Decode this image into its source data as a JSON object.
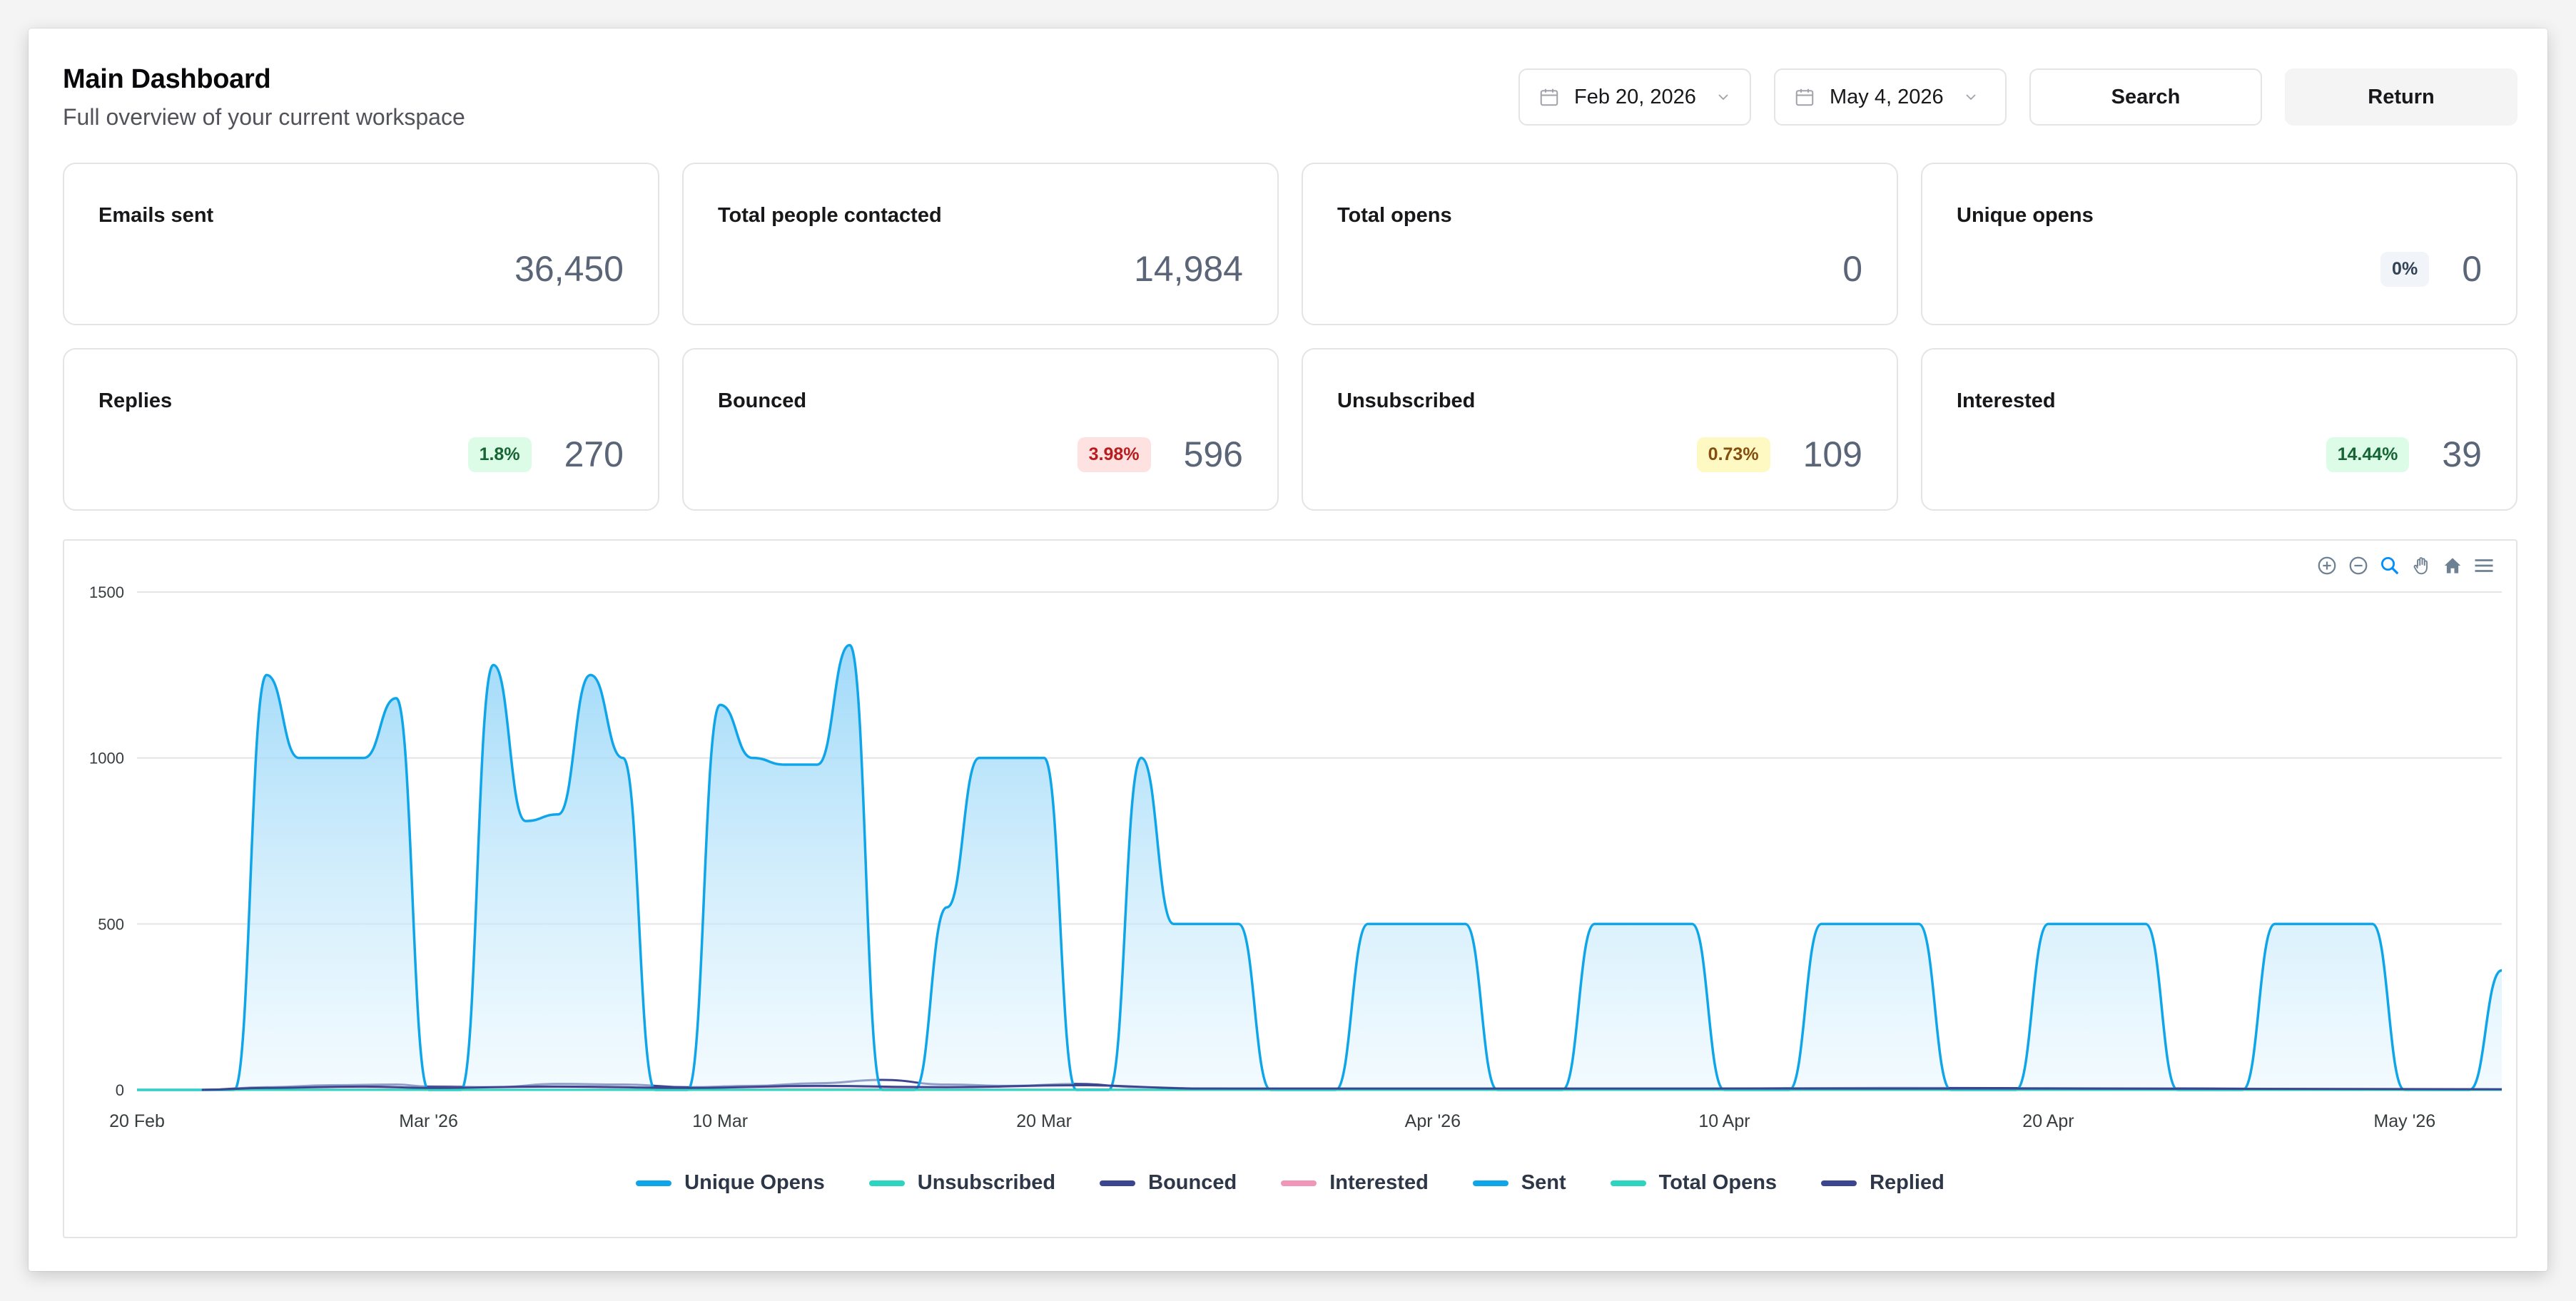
{
  "header": {
    "title": "Main Dashboard",
    "subtitle": "Full overview of your current workspace"
  },
  "controls": {
    "start_date": "Feb 20, 2026",
    "end_date": "May 4, 2026",
    "search_label": "Search",
    "return_label": "Return"
  },
  "stats": {
    "emails_sent": {
      "label": "Emails sent",
      "value": "36,450"
    },
    "people_contacted": {
      "label": "Total people contacted",
      "value": "14,984"
    },
    "total_opens": {
      "label": "Total opens",
      "value": "0"
    },
    "unique_opens": {
      "label": "Unique opens",
      "value": "0",
      "badge": "0%"
    },
    "replies": {
      "label": "Replies",
      "value": "270",
      "badge": "1.8%"
    },
    "bounced": {
      "label": "Bounced",
      "value": "596",
      "badge": "3.98%"
    },
    "unsubscribed": {
      "label": "Unsubscribed",
      "value": "109",
      "badge": "0.73%"
    },
    "interested": {
      "label": "Interested",
      "value": "39",
      "badge": "14.44%"
    }
  },
  "colors": {
    "sent": "#0ea5e9",
    "unique_opens": "#0ea5e9",
    "unsubscribed": "#2dd4bf",
    "bounced": "#3b4590",
    "interested": "#f096b8",
    "total_opens": "#2dd4bf",
    "replied": "#3b4590"
  },
  "toolbar_icons": [
    "zoom-in-icon",
    "zoom-out-icon",
    "selection-zoom-icon",
    "pan-icon",
    "home-icon",
    "menu-icon"
  ],
  "chart_data": {
    "type": "area",
    "title": "",
    "xlabel": "",
    "ylabel": "",
    "x_ticks": [
      "20 Feb",
      "Mar '26",
      "10 Mar",
      "20 Mar",
      "Apr '26",
      "10 Apr",
      "20 Apr",
      "May '26"
    ],
    "y_ticks": [
      "0",
      "500",
      "1000",
      "1500"
    ],
    "ylim": [
      0,
      1500
    ],
    "xlim": [
      "2026-02-20",
      "2026-05-04"
    ],
    "grid": true,
    "legend_position": "bottom",
    "series": [
      {
        "name": "Unique Opens",
        "points": []
      },
      {
        "name": "Unsubscribed",
        "points": []
      },
      {
        "name": "Bounced",
        "points": [
          [
            "2026-02-22",
            0
          ],
          [
            "2026-02-24",
            8
          ],
          [
            "2026-02-26",
            14
          ],
          [
            "2026-02-28",
            16
          ],
          [
            "2026-03-01",
            10
          ],
          [
            "2026-03-03",
            8
          ],
          [
            "2026-03-05",
            18
          ],
          [
            "2026-03-07",
            16
          ],
          [
            "2026-03-09",
            8
          ],
          [
            "2026-03-11",
            12
          ],
          [
            "2026-03-13",
            20
          ],
          [
            "2026-03-15",
            30
          ],
          [
            "2026-03-17",
            16
          ],
          [
            "2026-03-19",
            12
          ],
          [
            "2026-03-21",
            18
          ],
          [
            "2026-03-23",
            8
          ],
          [
            "2026-03-25",
            4
          ],
          [
            "2026-03-27",
            2
          ],
          [
            "2026-04-01",
            0
          ],
          [
            "2026-04-15",
            6
          ],
          [
            "2026-04-25",
            4
          ],
          [
            "2026-05-04",
            0
          ]
        ]
      },
      {
        "name": "Interested",
        "points": [
          [
            "2026-02-22",
            0
          ],
          [
            "2026-03-05",
            8
          ],
          [
            "2026-03-07",
            6
          ],
          [
            "2026-03-13",
            4
          ],
          [
            "2026-03-20",
            2
          ],
          [
            "2026-03-27",
            0
          ],
          [
            "2026-05-04",
            0
          ]
        ]
      },
      {
        "name": "Sent",
        "points": [
          [
            "2026-02-20",
            0
          ],
          [
            "2026-02-22",
            0
          ],
          [
            "2026-02-23",
            0
          ],
          [
            "2026-02-24",
            1250
          ],
          [
            "2026-02-25",
            1000
          ],
          [
            "2026-02-26",
            1000
          ],
          [
            "2026-02-27",
            1000
          ],
          [
            "2026-02-28",
            1180
          ],
          [
            "2026-03-01",
            0
          ],
          [
            "2026-03-02",
            0
          ],
          [
            "2026-03-03",
            1280
          ],
          [
            "2026-03-04",
            810
          ],
          [
            "2026-03-05",
            830
          ],
          [
            "2026-03-06",
            1250
          ],
          [
            "2026-03-07",
            1000
          ],
          [
            "2026-03-08",
            0
          ],
          [
            "2026-03-09",
            0
          ],
          [
            "2026-03-10",
            1160
          ],
          [
            "2026-03-11",
            1000
          ],
          [
            "2026-03-12",
            980
          ],
          [
            "2026-03-13",
            980
          ],
          [
            "2026-03-14",
            1340
          ],
          [
            "2026-03-15",
            0
          ],
          [
            "2026-03-16",
            0
          ],
          [
            "2026-03-17",
            550
          ],
          [
            "2026-03-18",
            1000
          ],
          [
            "2026-03-19",
            1000
          ],
          [
            "2026-03-20",
            1000
          ],
          [
            "2026-03-21",
            0
          ],
          [
            "2026-03-22",
            0
          ],
          [
            "2026-03-23",
            1000
          ],
          [
            "2026-03-24",
            500
          ],
          [
            "2026-03-25",
            500
          ],
          [
            "2026-03-26",
            500
          ],
          [
            "2026-03-27",
            0
          ],
          [
            "2026-03-28",
            0
          ],
          [
            "2026-03-29",
            0
          ],
          [
            "2026-03-30",
            500
          ],
          [
            "2026-03-31",
            500
          ],
          [
            "2026-04-01",
            500
          ],
          [
            "2026-04-02",
            500
          ],
          [
            "2026-04-03",
            0
          ],
          [
            "2026-04-04",
            0
          ],
          [
            "2026-04-05",
            0
          ],
          [
            "2026-04-06",
            500
          ],
          [
            "2026-04-07",
            500
          ],
          [
            "2026-04-08",
            500
          ],
          [
            "2026-04-09",
            500
          ],
          [
            "2026-04-10",
            0
          ],
          [
            "2026-04-11",
            0
          ],
          [
            "2026-04-12",
            0
          ],
          [
            "2026-04-13",
            500
          ],
          [
            "2026-04-14",
            500
          ],
          [
            "2026-04-15",
            500
          ],
          [
            "2026-04-16",
            500
          ],
          [
            "2026-04-17",
            0
          ],
          [
            "2026-04-18",
            0
          ],
          [
            "2026-04-19",
            0
          ],
          [
            "2026-04-20",
            500
          ],
          [
            "2026-04-21",
            500
          ],
          [
            "2026-04-22",
            500
          ],
          [
            "2026-04-23",
            500
          ],
          [
            "2026-04-24",
            0
          ],
          [
            "2026-04-25",
            0
          ],
          [
            "2026-04-26",
            0
          ],
          [
            "2026-04-27",
            500
          ],
          [
            "2026-04-28",
            500
          ],
          [
            "2026-04-29",
            500
          ],
          [
            "2026-04-30",
            500
          ],
          [
            "2026-05-01",
            0
          ],
          [
            "2026-05-02",
            0
          ],
          [
            "2026-05-03",
            0
          ],
          [
            "2026-05-04",
            360
          ]
        ]
      },
      {
        "name": "Total Opens",
        "points": []
      },
      {
        "name": "Replied",
        "points": [
          [
            "2026-02-22",
            0
          ],
          [
            "2026-02-24",
            6
          ],
          [
            "2026-02-27",
            10
          ],
          [
            "2026-03-01",
            6
          ],
          [
            "2026-03-05",
            10
          ],
          [
            "2026-03-09",
            6
          ],
          [
            "2026-03-13",
            12
          ],
          [
            "2026-03-17",
            8
          ],
          [
            "2026-03-21",
            14
          ],
          [
            "2026-03-25",
            4
          ],
          [
            "2026-04-05",
            4
          ],
          [
            "2026-04-20",
            4
          ],
          [
            "2026-05-04",
            2
          ]
        ]
      }
    ]
  }
}
